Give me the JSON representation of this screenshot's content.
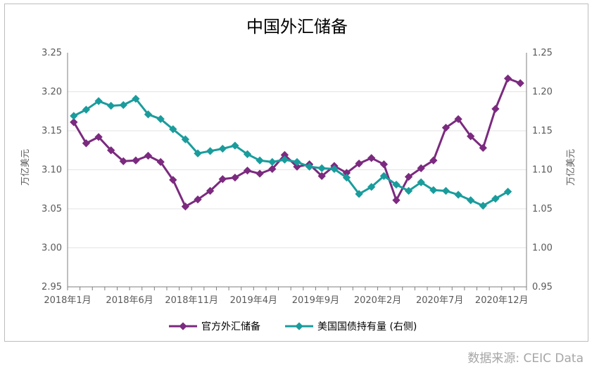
{
  "chart_data": {
    "type": "line",
    "title": "中国外汇储备",
    "ylabel": "万亿美元",
    "y2label": "万亿美元",
    "ylim": [
      2.95,
      3.25
    ],
    "y2lim": [
      0.95,
      1.25
    ],
    "yticks": [
      "3.25",
      "3.20",
      "3.15",
      "3.10",
      "3.05",
      "3.00",
      "2.95"
    ],
    "y2ticks": [
      "1.25",
      "1.20",
      "1.15",
      "1.10",
      "1.05",
      "1.00",
      "0.95"
    ],
    "xtick_labels": [
      "2018年1月",
      "2018年6月",
      "2018年11月",
      "2019年4月",
      "2019年9月",
      "2020年2月",
      "2020年7月",
      "2020年12月"
    ],
    "x_months": [
      "2018-01",
      "2018-02",
      "2018-03",
      "2018-04",
      "2018-05",
      "2018-06",
      "2018-07",
      "2018-08",
      "2018-09",
      "2018-10",
      "2018-11",
      "2018-12",
      "2019-01",
      "2019-02",
      "2019-03",
      "2019-04",
      "2019-05",
      "2019-06",
      "2019-07",
      "2019-08",
      "2019-09",
      "2019-10",
      "2019-11",
      "2019-12",
      "2020-01",
      "2020-02",
      "2020-03",
      "2020-04",
      "2020-05",
      "2020-06",
      "2020-07",
      "2020-08",
      "2020-09",
      "2020-10",
      "2020-11",
      "2020-12",
      "2021-01"
    ],
    "series": [
      {
        "name": "官方外汇储备",
        "axis": "left",
        "color": "#7b2a7f",
        "values": [
          3.161,
          3.134,
          3.142,
          3.125,
          3.111,
          3.112,
          3.118,
          3.11,
          3.087,
          3.053,
          3.062,
          3.073,
          3.088,
          3.09,
          3.099,
          3.095,
          3.101,
          3.119,
          3.104,
          3.107,
          3.092,
          3.105,
          3.096,
          3.108,
          3.115,
          3.107,
          3.061,
          3.091,
          3.102,
          3.112,
          3.154,
          3.165,
          3.143,
          3.128,
          3.178,
          3.217,
          3.211
        ]
      },
      {
        "name": "美国国债持有量 (右侧)",
        "axis": "right",
        "color": "#1a9c9c",
        "values": [
          1.169,
          1.177,
          1.188,
          1.182,
          1.183,
          1.191,
          1.171,
          1.165,
          1.152,
          1.139,
          1.121,
          1.124,
          1.127,
          1.131,
          1.12,
          1.112,
          1.11,
          1.113,
          1.11,
          1.104,
          1.102,
          1.101,
          1.09,
          1.069,
          1.078,
          1.092,
          1.081,
          1.073,
          1.084,
          1.074,
          1.073,
          1.068,
          1.061,
          1.054,
          1.063,
          1.072
        ]
      }
    ]
  },
  "source": "数据来源: CEIC Data"
}
